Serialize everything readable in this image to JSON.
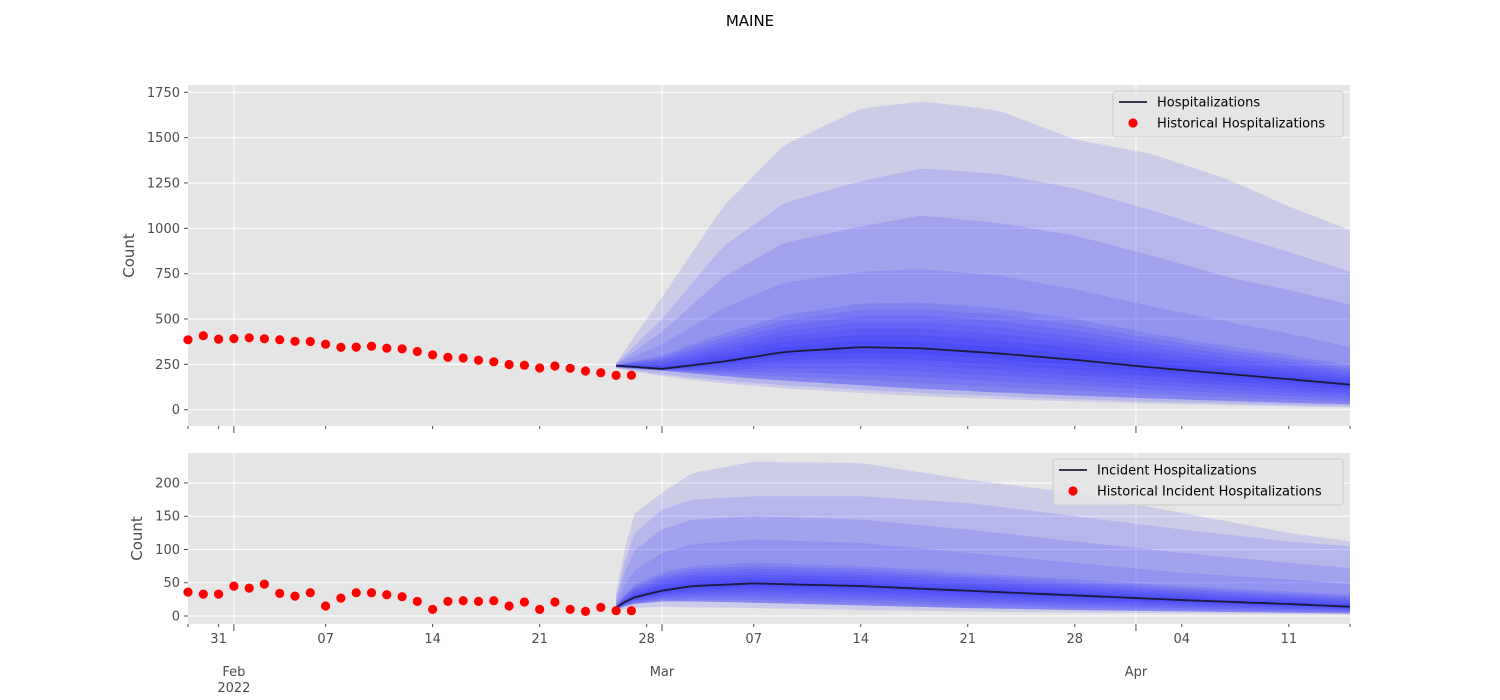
{
  "figure": {
    "title": "MAINE"
  },
  "colors": {
    "observed": "#ff0000",
    "median": "#1a1a3a",
    "band": "#2323ff",
    "panel_bg": "#e5e5e5",
    "grid": "#ffffff"
  },
  "x_axis": {
    "minor_ticks": [
      {
        "date": "2022-01-31",
        "label": "31"
      },
      {
        "date": "2022-02-07",
        "label": "07"
      },
      {
        "date": "2022-02-14",
        "label": "14"
      },
      {
        "date": "2022-02-21",
        "label": "21"
      },
      {
        "date": "2022-02-28",
        "label": "28"
      },
      {
        "date": "2022-03-07",
        "label": "07"
      },
      {
        "date": "2022-03-14",
        "label": "14"
      },
      {
        "date": "2022-03-21",
        "label": "21"
      },
      {
        "date": "2022-03-28",
        "label": "28"
      },
      {
        "date": "2022-04-04",
        "label": "04"
      },
      {
        "date": "2022-04-11",
        "label": "11"
      }
    ],
    "major_ticks": [
      {
        "date": "2022-02-01",
        "label": "Feb",
        "sublabel": "2022"
      },
      {
        "date": "2022-03-01",
        "label": "Mar",
        "sublabel": ""
      },
      {
        "date": "2022-04-01",
        "label": "Apr",
        "sublabel": ""
      }
    ],
    "range": [
      "2022-01-29",
      "2022-04-15"
    ]
  },
  "chart_data": [
    {
      "type": "line",
      "panel": "top",
      "ylabel": "Count",
      "ylim": [
        -90,
        1790
      ],
      "yticks": [
        0,
        250,
        500,
        750,
        1000,
        1250,
        1500,
        1750
      ],
      "grid": true,
      "legend_position": "top-right",
      "legend": [
        {
          "label": "Hospitalizations",
          "kind": "line"
        },
        {
          "label": "Historical Hospitalizations",
          "kind": "marker"
        }
      ],
      "observed": {
        "name": "Historical Hospitalizations",
        "start": "2022-01-29",
        "values": [
          385,
          408,
          389,
          392,
          396,
          391,
          386,
          377,
          376,
          361,
          344,
          345,
          350,
          339,
          335,
          321,
          302,
          289,
          285,
          273,
          264,
          249,
          245,
          230,
          241,
          228,
          213,
          204,
          189,
          190
        ]
      },
      "forecast": {
        "name": "Hospitalizations",
        "start": "2022-02-26",
        "dates": [
          "2022-02-26",
          "2022-03-01",
          "2022-03-05",
          "2022-03-09",
          "2022-03-14",
          "2022-03-18",
          "2022-03-23",
          "2022-03-28",
          "2022-04-02",
          "2022-04-07",
          "2022-04-11",
          "2022-04-15"
        ],
        "median": [
          243,
          225,
          265,
          318,
          345,
          338,
          310,
          275,
          233,
          197,
          168,
          138
        ],
        "lower_bounds": [
          [
            233,
            215,
            185,
            160,
            135,
            115,
            95,
            78,
            62,
            48,
            38,
            30
          ],
          [
            230,
            195,
            160,
            135,
            110,
            92,
            74,
            58,
            45,
            34,
            26,
            20
          ],
          [
            228,
            185,
            145,
            118,
            92,
            75,
            58,
            45,
            34,
            25,
            18,
            13
          ]
        ],
        "upper_bounds": [
          [
            248,
            300,
            420,
            520,
            585,
            590,
            560,
            500,
            420,
            350,
            300,
            245
          ],
          [
            250,
            360,
            560,
            700,
            760,
            775,
            740,
            665,
            570,
            485,
            420,
            345
          ],
          [
            252,
            430,
            730,
            920,
            1010,
            1070,
            1030,
            960,
            850,
            730,
            660,
            580
          ],
          [
            255,
            500,
            900,
            1140,
            1260,
            1330,
            1300,
            1220,
            1100,
            970,
            870,
            760
          ],
          [
            258,
            620,
            1120,
            1460,
            1660,
            1700,
            1650,
            1490,
            1410,
            1270,
            1120,
            990
          ]
        ]
      }
    },
    {
      "type": "line",
      "panel": "bottom",
      "ylabel": "Count",
      "ylim": [
        -12,
        245
      ],
      "yticks": [
        0,
        50,
        100,
        150,
        200
      ],
      "grid": true,
      "legend_position": "top-right",
      "legend": [
        {
          "label": "Incident Hospitalizations",
          "kind": "line"
        },
        {
          "label": "Historical Incident Hospitalizations",
          "kind": "marker"
        }
      ],
      "observed": {
        "name": "Historical Incident Hospitalizations",
        "start": "2022-01-29",
        "values": [
          36,
          33,
          33,
          45,
          42,
          48,
          34,
          30,
          35,
          15,
          27,
          35,
          35,
          32,
          29,
          22,
          10,
          22,
          23,
          22,
          23,
          15,
          21,
          10,
          21,
          10,
          7,
          13,
          8,
          8
        ]
      },
      "forecast": {
        "name": "Incident Hospitalizations",
        "start": "2022-02-26",
        "dates": [
          "2022-02-26",
          "2022-02-27",
          "2022-03-01",
          "2022-03-03",
          "2022-03-07",
          "2022-03-14",
          "2022-03-21",
          "2022-03-28",
          "2022-04-04",
          "2022-04-11",
          "2022-04-15"
        ],
        "median": [
          13,
          27,
          38,
          45,
          49,
          45,
          38,
          31,
          24,
          18,
          14
        ],
        "lower_bounds": [
          [
            10,
            18,
            22,
            22,
            20,
            16,
            12,
            9,
            7,
            5,
            4
          ],
          [
            8,
            12,
            14,
            13,
            12,
            9,
            7,
            5,
            4,
            3,
            2
          ]
        ],
        "upper_bounds": [
          [
            16,
            45,
            65,
            75,
            80,
            75,
            65,
            55,
            45,
            37,
            32
          ],
          [
            20,
            65,
            95,
            108,
            115,
            110,
            95,
            80,
            65,
            55,
            48
          ],
          [
            25,
            95,
            130,
            145,
            150,
            145,
            130,
            112,
            95,
            80,
            72
          ],
          [
            30,
            120,
            160,
            175,
            180,
            180,
            170,
            150,
            130,
            112,
            105
          ],
          [
            35,
            150,
            185,
            215,
            232,
            230,
            205,
            185,
            155,
            125,
            112
          ]
        ]
      }
    }
  ]
}
